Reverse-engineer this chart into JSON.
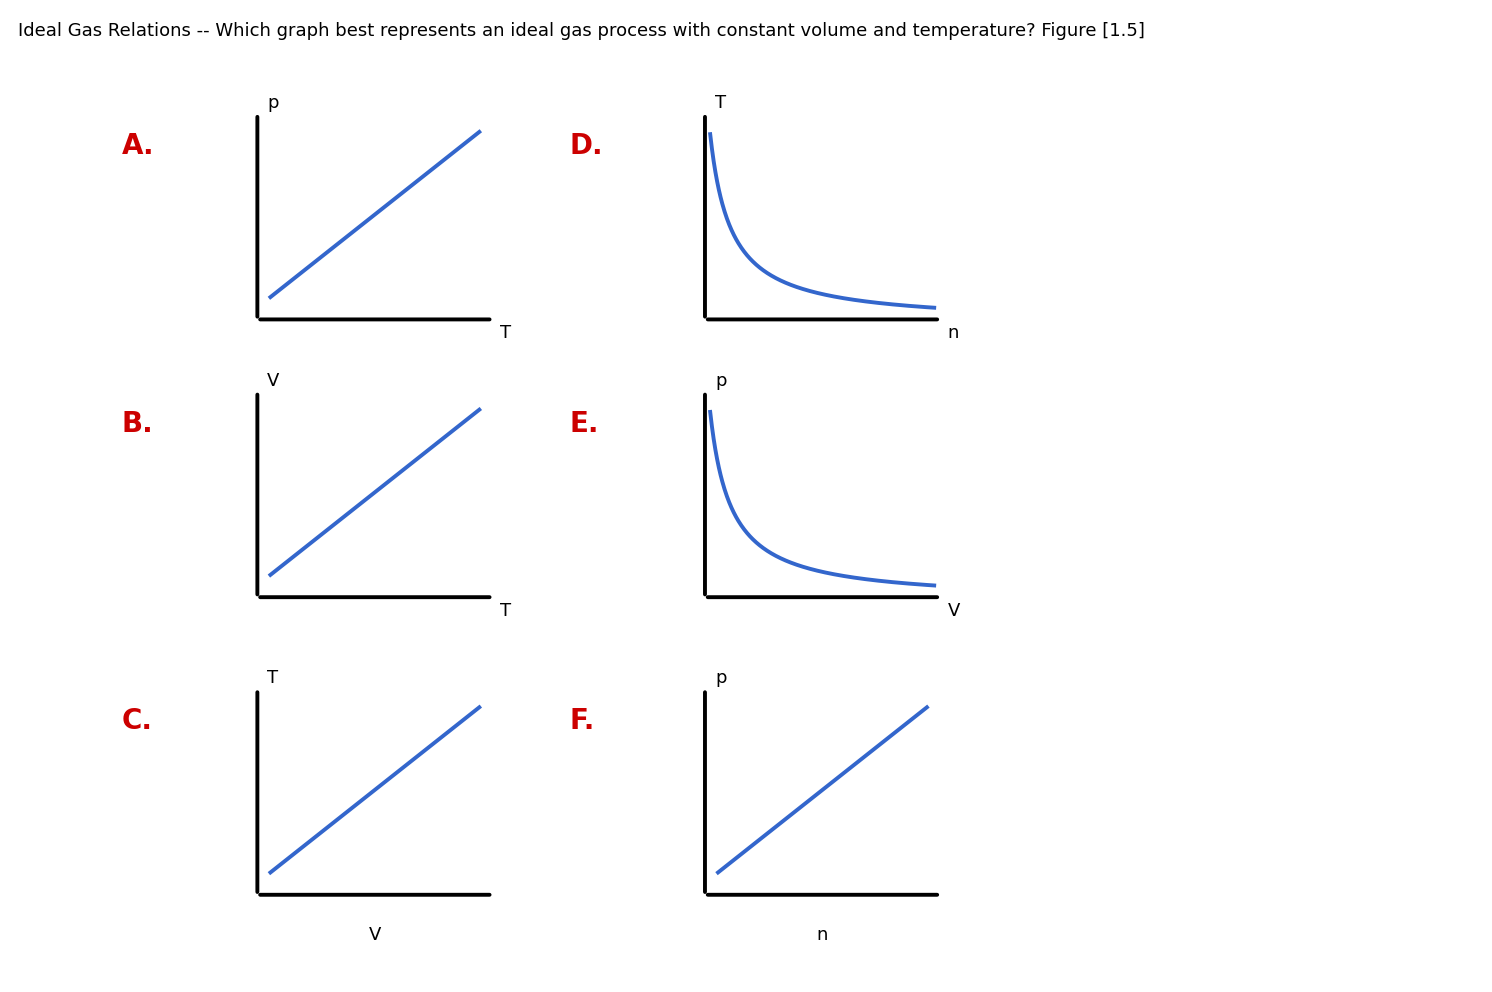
{
  "title": "Ideal Gas Relations -- Which graph best represents an ideal gas process with constant volume and temperature? Figure [1.5]",
  "title_fontsize": 13,
  "title_color": "#000000",
  "background_color": "#ffffff",
  "label_color_letter": "#cc0000",
  "label_color_axis": "#000000",
  "line_color": "#3366cc",
  "line_width": 2.8,
  "axes_color": "#000000",
  "axes_lw": 2.8,
  "panels": [
    {
      "letter": "A",
      "ylabel": "p",
      "xlabel": "T",
      "ylabel_side": "top_left",
      "xlabel_side": "bottom_right",
      "curve": "linear_up",
      "col": 0,
      "row": 0
    },
    {
      "letter": "D",
      "ylabel": "T",
      "xlabel": "n",
      "ylabel_side": "top_left",
      "xlabel_side": "bottom_right",
      "curve": "hyperbola_down",
      "col": 1,
      "row": 0
    },
    {
      "letter": "B",
      "ylabel": "V",
      "xlabel": "T",
      "ylabel_side": "top_left",
      "xlabel_side": "bottom_right",
      "curve": "linear_up",
      "col": 0,
      "row": 1
    },
    {
      "letter": "E",
      "ylabel": "p",
      "xlabel": "V",
      "ylabel_side": "top_left",
      "xlabel_side": "bottom_right",
      "curve": "hyperbola_down",
      "col": 1,
      "row": 1
    },
    {
      "letter": "C",
      "ylabel": "T",
      "xlabel": "V",
      "ylabel_side": "top_left",
      "xlabel_side": "bottom_center",
      "curve": "linear_up",
      "col": 0,
      "row": 2
    },
    {
      "letter": "F",
      "ylabel": "p",
      "xlabel": "n",
      "ylabel_side": "top_left",
      "xlabel_side": "bottom_center",
      "curve": "linear_up",
      "col": 1,
      "row": 2
    }
  ]
}
